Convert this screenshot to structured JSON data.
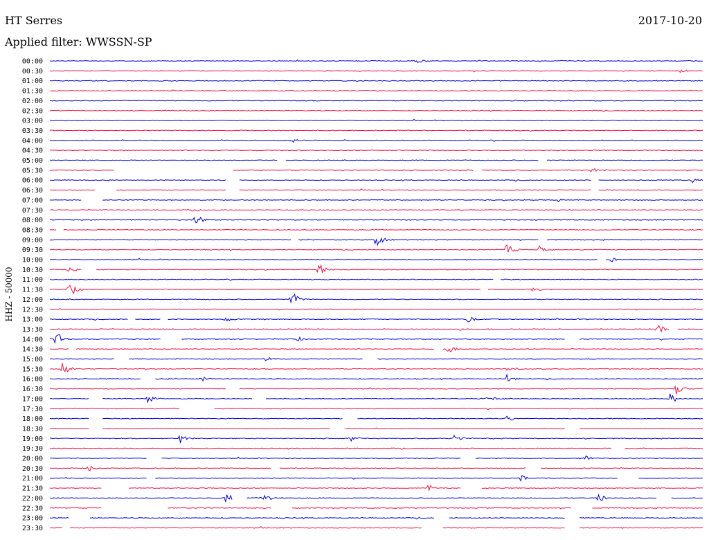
{
  "header": {
    "station": "HT Serres",
    "date": "2017-10-20",
    "filter": "Applied filter: WWSSN-SP"
  },
  "chart_data": {
    "type": "line",
    "title": "HT Serres",
    "subtitle": "Applied filter: WWSSN-SP",
    "ylabel": "HHZ - 50000",
    "xlabel": "",
    "x_range_minutes": [
      0,
      30
    ],
    "grid": false,
    "colors": [
      "#0000cc",
      "#ee1144"
    ],
    "rows": [
      {
        "label": "00:00",
        "color": "#0000cc",
        "events": [
          {
            "t": 0.56,
            "amp": 0.8
          }
        ],
        "gaps": []
      },
      {
        "label": "00:30",
        "color": "#ee1144",
        "events": [
          {
            "t": 0.965,
            "amp": 0.6
          }
        ],
        "gaps": []
      },
      {
        "label": "01:00",
        "color": "#0000cc",
        "events": [],
        "gaps": []
      },
      {
        "label": "01:30",
        "color": "#ee1144",
        "events": [],
        "gaps": []
      },
      {
        "label": "02:00",
        "color": "#0000cc",
        "events": [],
        "gaps": []
      },
      {
        "label": "02:30",
        "color": "#ee1144",
        "events": [],
        "gaps": []
      },
      {
        "label": "03:00",
        "color": "#0000cc",
        "events": [],
        "gaps": []
      },
      {
        "label": "03:30",
        "color": "#ee1144",
        "events": [],
        "gaps": []
      },
      {
        "label": "04:00",
        "color": "#0000cc",
        "events": [
          {
            "t": 0.37,
            "amp": 0.5
          }
        ],
        "gaps": []
      },
      {
        "label": "04:30",
        "color": "#ee1144",
        "events": [],
        "gaps": []
      },
      {
        "label": "05:00",
        "color": "#0000cc",
        "events": [],
        "gaps": [
          [
            0.35,
            0.36
          ],
          [
            0.75,
            0.76
          ]
        ]
      },
      {
        "label": "05:30",
        "color": "#ee1144",
        "events": [
          {
            "t": 0.83,
            "amp": 0.6
          }
        ],
        "gaps": [
          [
            0.1,
            0.28
          ],
          [
            0.65,
            0.66
          ]
        ]
      },
      {
        "label": "06:00",
        "color": "#0000cc",
        "events": [
          {
            "t": 0.985,
            "amp": 0.6
          }
        ],
        "gaps": [
          [
            0.27,
            0.29
          ],
          [
            0.83,
            0.84
          ]
        ]
      },
      {
        "label": "06:30",
        "color": "#ee1144",
        "events": [],
        "gaps": [
          [
            0.07,
            0.1
          ],
          [
            0.27,
            0.29
          ],
          [
            0.83,
            0.84
          ]
        ]
      },
      {
        "label": "07:00",
        "color": "#0000cc",
        "events": [
          {
            "t": 0.78,
            "amp": 0.6
          }
        ],
        "gaps": [
          [
            0.05,
            0.08
          ]
        ]
      },
      {
        "label": "07:30",
        "color": "#ee1144",
        "events": [
          {
            "t": 0.22,
            "amp": 0.5
          }
        ],
        "gaps": []
      },
      {
        "label": "08:00",
        "color": "#0000cc",
        "events": [
          {
            "t": 0.22,
            "amp": 2.2
          }
        ],
        "gaps": []
      },
      {
        "label": "08:30",
        "color": "#ee1144",
        "events": [],
        "gaps": [
          [
            0.01,
            0.02
          ]
        ]
      },
      {
        "label": "09:00",
        "color": "#0000cc",
        "events": [
          {
            "t": 0.5,
            "amp": 1.8
          }
        ],
        "gaps": [
          [
            0.37,
            0.38
          ],
          [
            0.75,
            0.76
          ]
        ]
      },
      {
        "label": "09:30",
        "color": "#ee1144",
        "events": [
          {
            "t": 0.7,
            "amp": 1.8
          },
          {
            "t": 0.75,
            "amp": 0.9
          }
        ],
        "gaps": []
      },
      {
        "label": "10:00",
        "color": "#0000cc",
        "events": [
          {
            "t": 0.86,
            "amp": 0.6
          }
        ],
        "gaps": [
          [
            0.84,
            0.85
          ]
        ]
      },
      {
        "label": "10:30",
        "color": "#ee1144",
        "events": [
          {
            "t": 0.41,
            "amp": 2.0
          },
          {
            "t": 0.03,
            "amp": 0.7
          }
        ],
        "gaps": [
          [
            0.05,
            0.07
          ]
        ]
      },
      {
        "label": "11:00",
        "color": "#0000cc",
        "events": [],
        "gaps": [
          [
            0.68,
            0.69
          ]
        ]
      },
      {
        "label": "11:30",
        "color": "#ee1144",
        "events": [
          {
            "t": 0.03,
            "amp": 2.2
          },
          {
            "t": 0.74,
            "amp": 0.6
          }
        ],
        "gaps": [
          [
            0.66,
            0.67
          ]
        ]
      },
      {
        "label": "12:00",
        "color": "#0000cc",
        "events": [
          {
            "t": 0.37,
            "amp": 2.0
          }
        ],
        "gaps": []
      },
      {
        "label": "12:30",
        "color": "#ee1144",
        "events": [],
        "gaps": []
      },
      {
        "label": "13:00",
        "color": "#0000cc",
        "events": [
          {
            "t": 0.27,
            "amp": 0.7
          },
          {
            "t": 0.64,
            "amp": 1.0
          }
        ],
        "gaps": [
          [
            0.12,
            0.13
          ],
          [
            0.17,
            0.18
          ]
        ]
      },
      {
        "label": "13:30",
        "color": "#ee1144",
        "events": [
          {
            "t": 0.93,
            "amp": 1.2
          },
          {
            "t": 0.63,
            "amp": 0.6
          }
        ],
        "gaps": [
          [
            0.95,
            0.96
          ]
        ]
      },
      {
        "label": "14:00",
        "color": "#0000cc",
        "events": [
          {
            "t": 0.01,
            "amp": 1.8
          },
          {
            "t": 0.38,
            "amp": 0.6
          }
        ],
        "gaps": [
          [
            0.17,
            0.2
          ],
          [
            0.79,
            0.81
          ]
        ]
      },
      {
        "label": "14:30",
        "color": "#ee1144",
        "events": [
          {
            "t": 0.61,
            "amp": 1.4
          }
        ],
        "gaps": [
          [
            0.03,
            0.04
          ],
          [
            0.59,
            0.6
          ]
        ]
      },
      {
        "label": "15:00",
        "color": "#0000cc",
        "events": [
          {
            "t": 0.33,
            "amp": 0.8
          }
        ],
        "gaps": [
          [
            0.1,
            0.12
          ],
          [
            0.48,
            0.5
          ]
        ]
      },
      {
        "label": "15:30",
        "color": "#ee1144",
        "events": [
          {
            "t": 0.02,
            "amp": 1.8
          },
          {
            "t": 0.7,
            "amp": 0.7
          }
        ],
        "gaps": []
      },
      {
        "label": "16:00",
        "color": "#0000cc",
        "events": [
          {
            "t": 0.23,
            "amp": 0.9
          },
          {
            "t": 0.7,
            "amp": 0.8
          }
        ],
        "gaps": [
          [
            0.14,
            0.16
          ]
        ]
      },
      {
        "label": "16:30",
        "color": "#ee1144",
        "events": [
          {
            "t": 0.96,
            "amp": 1.3
          }
        ],
        "gaps": [
          [
            0.27,
            0.29
          ]
        ]
      },
      {
        "label": "17:00",
        "color": "#0000cc",
        "events": [
          {
            "t": 0.15,
            "amp": 1.2
          },
          {
            "t": 0.67,
            "amp": 0.8
          },
          {
            "t": 0.95,
            "amp": 1.0
          }
        ],
        "gaps": [
          [
            0.06,
            0.08
          ],
          [
            0.31,
            0.33
          ]
        ]
      },
      {
        "label": "17:30",
        "color": "#ee1144",
        "events": [],
        "gaps": [
          [
            0.2,
            0.25
          ]
        ]
      },
      {
        "label": "18:00",
        "color": "#0000cc",
        "events": [
          {
            "t": 0.7,
            "amp": 0.8
          }
        ],
        "gaps": [
          [
            0.06,
            0.08
          ],
          [
            0.45,
            0.47
          ]
        ]
      },
      {
        "label": "18:30",
        "color": "#ee1144",
        "events": [],
        "gaps": [
          [
            0.06,
            0.08
          ],
          [
            0.43,
            0.45
          ],
          [
            0.79,
            0.81
          ]
        ]
      },
      {
        "label": "19:00",
        "color": "#0000cc",
        "events": [
          {
            "t": 0.2,
            "amp": 1.0
          },
          {
            "t": 0.46,
            "amp": 0.9
          },
          {
            "t": 0.62,
            "amp": 0.8
          }
        ],
        "gaps": []
      },
      {
        "label": "19:30",
        "color": "#ee1144",
        "events": [],
        "gaps": [
          [
            0.86,
            0.88
          ]
        ]
      },
      {
        "label": "20:00",
        "color": "#0000cc",
        "events": [
          {
            "t": 0.82,
            "amp": 0.6
          }
        ],
        "gaps": [
          [
            0.15,
            0.17
          ],
          [
            0.63,
            0.65
          ]
        ]
      },
      {
        "label": "20:30",
        "color": "#ee1144",
        "events": [
          {
            "t": 0.06,
            "amp": 0.7
          }
        ],
        "gaps": [
          [
            0.34,
            0.35
          ],
          [
            0.73,
            0.75
          ]
        ]
      },
      {
        "label": "21:00",
        "color": "#0000cc",
        "events": [
          {
            "t": 0.72,
            "amp": 0.8
          }
        ],
        "gaps": [
          [
            0.15,
            0.16
          ],
          [
            0.87,
            0.9
          ]
        ]
      },
      {
        "label": "21:30",
        "color": "#ee1144",
        "events": [
          {
            "t": 0.58,
            "amp": 0.9
          }
        ],
        "gaps": [
          [
            0.08,
            0.12
          ],
          [
            0.63,
            0.66
          ]
        ]
      },
      {
        "label": "22:00",
        "color": "#0000cc",
        "events": [
          {
            "t": 0.27,
            "amp": 1.2
          },
          {
            "t": 0.33,
            "amp": 0.9
          },
          {
            "t": 0.84,
            "amp": 1.0
          }
        ],
        "gaps": [
          [
            0.28,
            0.3
          ],
          [
            0.93,
            0.95
          ]
        ]
      },
      {
        "label": "22:30",
        "color": "#ee1144",
        "events": [],
        "gaps": [
          [
            0.08,
            0.18
          ],
          [
            0.34,
            0.37
          ],
          [
            0.8,
            0.83
          ]
        ]
      },
      {
        "label": "23:00",
        "color": "#0000cc",
        "events": [],
        "gaps": [
          [
            0.03,
            0.06
          ],
          [
            0.59,
            0.61
          ],
          [
            0.79,
            0.81
          ]
        ]
      },
      {
        "label": "23:30",
        "color": "#ee1144",
        "events": [],
        "gaps": [
          [
            0.02,
            0.03
          ],
          [
            0.57,
            0.6
          ],
          [
            0.79,
            0.81
          ]
        ]
      }
    ]
  }
}
